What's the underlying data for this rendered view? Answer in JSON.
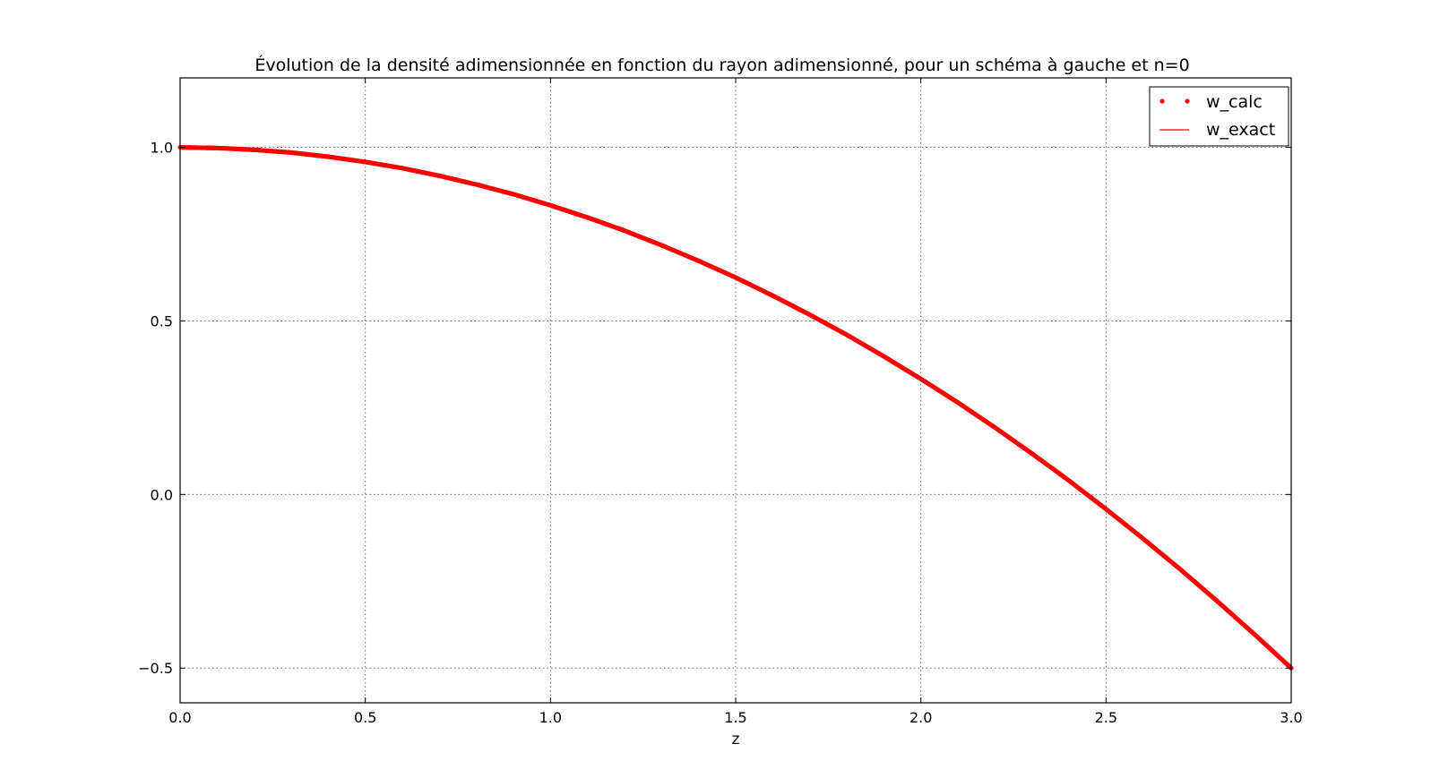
{
  "chart_data": {
    "type": "line",
    "title": "Évolution de la densité adimensionnée en fonction du rayon adimensionné, pour un schéma à gauche et n=0",
    "xlabel": "z",
    "ylabel": "",
    "xlim": [
      0.0,
      3.0
    ],
    "ylim": [
      -0.6,
      1.2
    ],
    "xticks": [
      0.0,
      0.5,
      1.0,
      1.5,
      2.0,
      2.5,
      3.0
    ],
    "xtick_labels": [
      "0.0",
      "0.5",
      "1.0",
      "1.5",
      "2.0",
      "2.5",
      "3.0"
    ],
    "yticks": [
      -0.5,
      0.0,
      0.5,
      1.0
    ],
    "ytick_labels": [
      "−0.5",
      "0.0",
      "0.5",
      "1.0"
    ],
    "grid": true,
    "legend_position": "top-right",
    "series": [
      {
        "name": "w_calc",
        "style": "points",
        "color": "#ff0000",
        "x": [
          0.0,
          0.1,
          0.2,
          0.3,
          0.4,
          0.5,
          0.6,
          0.7,
          0.8,
          0.9,
          1.0,
          1.1,
          1.2,
          1.3,
          1.4,
          1.5,
          1.6,
          1.7,
          1.8,
          1.9,
          2.0,
          2.1,
          2.2,
          2.3,
          2.4,
          2.5,
          2.6,
          2.7,
          2.8,
          2.9,
          3.0
        ],
        "y": [
          1.0,
          0.998,
          0.993,
          0.985,
          0.973,
          0.958,
          0.94,
          0.918,
          0.893,
          0.865,
          0.833,
          0.798,
          0.76,
          0.718,
          0.673,
          0.625,
          0.573,
          0.518,
          0.46,
          0.398,
          0.333,
          0.265,
          0.193,
          0.118,
          0.04,
          -0.042,
          -0.127,
          -0.215,
          -0.307,
          -0.402,
          -0.5
        ]
      },
      {
        "name": "w_exact",
        "style": "line",
        "color": "#ff0000",
        "x": [
          0.0,
          0.1,
          0.2,
          0.3,
          0.4,
          0.5,
          0.6,
          0.7,
          0.8,
          0.9,
          1.0,
          1.1,
          1.2,
          1.3,
          1.4,
          1.5,
          1.6,
          1.7,
          1.8,
          1.9,
          2.0,
          2.1,
          2.2,
          2.3,
          2.4,
          2.5,
          2.6,
          2.7,
          2.8,
          2.9,
          3.0
        ],
        "y": [
          1.0,
          0.998,
          0.993,
          0.985,
          0.973,
          0.958,
          0.94,
          0.918,
          0.893,
          0.865,
          0.833,
          0.798,
          0.76,
          0.718,
          0.673,
          0.625,
          0.573,
          0.518,
          0.46,
          0.398,
          0.333,
          0.265,
          0.193,
          0.118,
          0.04,
          -0.042,
          -0.127,
          -0.215,
          -0.307,
          -0.402,
          -0.5
        ]
      }
    ]
  }
}
